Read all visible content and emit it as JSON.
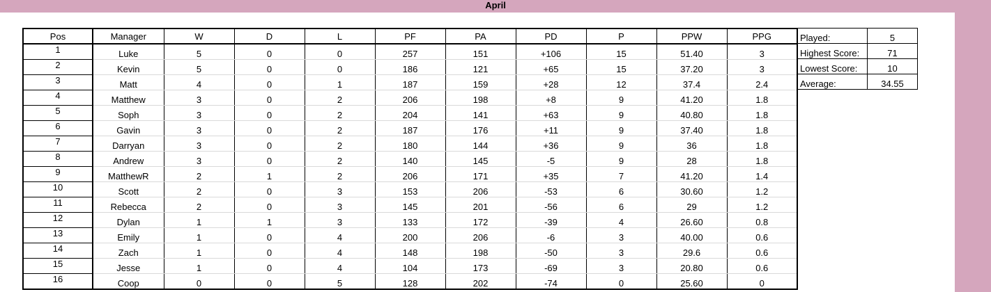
{
  "sheet_title": "April",
  "colors": {
    "accent_pink": "#d5a6bd",
    "border": "#000000",
    "gridline": "#d9d9d9"
  },
  "table": {
    "headers": [
      "Pos",
      "Manager",
      "W",
      "D",
      "L",
      "PF",
      "PA",
      "PD",
      "P",
      "PPW",
      "PPG"
    ],
    "rows": [
      [
        "1",
        "Luke",
        "5",
        "0",
        "0",
        "257",
        "151",
        "+106",
        "15",
        "51.40",
        "3"
      ],
      [
        "2",
        "Kevin",
        "5",
        "0",
        "0",
        "186",
        "121",
        "+65",
        "15",
        "37.20",
        "3"
      ],
      [
        "3",
        "Matt",
        "4",
        "0",
        "1",
        "187",
        "159",
        "+28",
        "12",
        "37.4",
        "2.4"
      ],
      [
        "4",
        "Matthew",
        "3",
        "0",
        "2",
        "206",
        "198",
        "+8",
        "9",
        "41.20",
        "1.8"
      ],
      [
        "5",
        "Soph",
        "3",
        "0",
        "2",
        "204",
        "141",
        "+63",
        "9",
        "40.80",
        "1.8"
      ],
      [
        "6",
        "Gavin",
        "3",
        "0",
        "2",
        "187",
        "176",
        "+11",
        "9",
        "37.40",
        "1.8"
      ],
      [
        "7",
        "Darryan",
        "3",
        "0",
        "2",
        "180",
        "144",
        "+36",
        "9",
        "36",
        "1.8"
      ],
      [
        "8",
        "Andrew",
        "3",
        "0",
        "2",
        "140",
        "145",
        "-5",
        "9",
        "28",
        "1.8"
      ],
      [
        "9",
        "MatthewR",
        "2",
        "1",
        "2",
        "206",
        "171",
        "+35",
        "7",
        "41.20",
        "1.4"
      ],
      [
        "10",
        "Scott",
        "2",
        "0",
        "3",
        "153",
        "206",
        "-53",
        "6",
        "30.60",
        "1.2"
      ],
      [
        "11",
        "Rebecca",
        "2",
        "0",
        "3",
        "145",
        "201",
        "-56",
        "6",
        "29",
        "1.2"
      ],
      [
        "12",
        "Dylan",
        "1",
        "1",
        "3",
        "133",
        "172",
        "-39",
        "4",
        "26.60",
        "0.8"
      ],
      [
        "13",
        "Emily",
        "1",
        "0",
        "4",
        "200",
        "206",
        "-6",
        "3",
        "40.00",
        "0.6"
      ],
      [
        "14",
        "Zach",
        "1",
        "0",
        "4",
        "148",
        "198",
        "-50",
        "3",
        "29.6",
        "0.6"
      ],
      [
        "15",
        "Jesse",
        "1",
        "0",
        "4",
        "104",
        "173",
        "-69",
        "3",
        "20.80",
        "0.6"
      ],
      [
        "16",
        "Coop",
        "0",
        "0",
        "5",
        "128",
        "202",
        "-74",
        "0",
        "25.60",
        "0"
      ]
    ]
  },
  "stats": [
    {
      "label": "Played:",
      "value": "5"
    },
    {
      "label": "Highest Score:",
      "value": "71"
    },
    {
      "label": "Lowest Score:",
      "value": "10"
    },
    {
      "label": "Average:",
      "value": "34.55"
    }
  ]
}
